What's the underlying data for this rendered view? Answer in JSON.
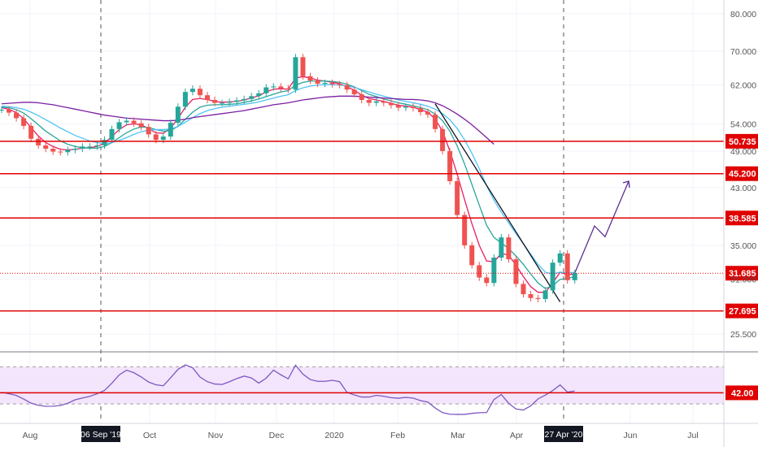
{
  "chart_data": {
    "type": "candlestick",
    "title": "",
    "price_axis": {
      "scale": "log",
      "range": [
        24.0,
        84.0
      ],
      "ticks": [
        "80.000",
        "70.000",
        "62.000",
        "54.000",
        "49.000",
        "43.000",
        "35.000",
        "31.000",
        "25.500"
      ]
    },
    "time_axis": {
      "ticks": [
        "Aug",
        "Oct",
        "Nov",
        "Dec",
        "2020",
        "Feb",
        "Mar",
        "Apr",
        "Jun",
        "Jul"
      ],
      "highlighted": [
        "06 Sep '19",
        "27 Apr '20"
      ]
    },
    "price_closes": [
      56.8,
      56.2,
      55.1,
      53.6,
      51.2,
      50.0,
      49.4,
      48.9,
      48.8,
      49.2,
      49.4,
      49.8,
      49.8,
      50.0,
      51.0,
      53.0,
      54.3,
      54.6,
      54.1,
      53.4,
      52.0,
      51.0,
      51.6,
      54.2,
      57.4,
      60.5,
      61.2,
      59.8,
      58.8,
      58.2,
      58.2,
      58.4,
      58.7,
      59.0,
      59.6,
      60.2,
      61.5,
      61.7,
      61.3,
      61.0,
      68.5,
      64.0,
      63.0,
      62.3,
      62.5,
      62.2,
      62.0,
      61.0,
      60.0,
      58.8,
      58.2,
      58.5,
      58.2,
      57.7,
      57.2,
      57.4,
      57.1,
      56.3,
      55.8,
      53.0,
      49.0,
      44.0,
      39.0,
      35.0,
      32.6,
      31.2,
      30.6,
      33.5,
      36.0,
      33.3,
      30.5,
      29.4,
      29.0,
      28.9,
      29.8,
      32.9,
      34.0,
      30.9,
      31.7
    ],
    "horizontal_levels": [
      {
        "label": "50.735",
        "value": 50.735
      },
      {
        "label": "45.200",
        "value": 45.2
      },
      {
        "label": "38.585",
        "value": 38.585
      },
      {
        "label": "31.685",
        "value": 31.685,
        "style": "dotted"
      },
      {
        "label": "27.695",
        "value": 27.695
      }
    ],
    "projection_path": [
      31.7,
      37.5,
      36.1,
      44.0
    ],
    "moving_averages": [
      {
        "color": "#e91e63",
        "values": [
          57.2,
          56.9,
          56.2,
          55.0,
          53.3,
          51.7,
          50.5,
          49.8,
          49.3,
          49.2,
          49.3,
          49.5,
          49.6,
          49.8,
          50.4,
          51.6,
          52.9,
          53.8,
          54.0,
          53.8,
          53.1,
          52.3,
          52.2,
          53.2,
          55.0,
          57.3,
          58.9,
          59.1,
          58.9,
          58.5,
          58.3,
          58.4,
          58.5,
          58.8,
          59.2,
          59.7,
          60.5,
          61.1,
          61.2,
          61.1,
          63.6,
          63.9,
          63.6,
          63.1,
          62.9,
          62.6,
          62.3,
          61.6,
          60.9,
          59.8,
          59.1,
          58.8,
          58.5,
          58.1,
          57.7,
          57.5,
          57.3,
          56.8,
          56.3,
          54.9,
          52.6,
          49.0,
          45.1,
          41.2,
          37.8,
          35.0,
          33.1,
          33.0,
          34.0,
          33.8,
          32.6,
          31.3,
          30.2,
          29.6,
          29.6,
          30.6,
          31.8,
          31.5,
          31.6
        ]
      },
      {
        "color": "#26a69a",
        "values": [
          57.3,
          57.2,
          56.8,
          56.1,
          55.0,
          53.8,
          52.6,
          51.7,
          50.8,
          50.2,
          49.8,
          49.6,
          49.5,
          49.5,
          49.8,
          50.5,
          51.4,
          52.3,
          53.0,
          53.4,
          53.3,
          52.9,
          52.6,
          52.7,
          53.5,
          54.9,
          56.3,
          57.3,
          57.7,
          57.8,
          57.8,
          57.9,
          58.0,
          58.3,
          58.6,
          59.0,
          59.5,
          60.0,
          60.5,
          60.8,
          62.0,
          62.6,
          62.9,
          62.9,
          62.9,
          62.8,
          62.6,
          62.2,
          61.6,
          60.8,
          60.0,
          59.5,
          59.0,
          58.6,
          58.2,
          57.9,
          57.6,
          57.2,
          56.8,
          55.9,
          54.6,
          52.6,
          49.9,
          46.8,
          43.5,
          40.4,
          37.6,
          36.0,
          35.3,
          34.6,
          33.7,
          32.7,
          31.6,
          30.6,
          30.0,
          30.3,
          31.0,
          31.1,
          31.3
        ]
      },
      {
        "color": "#4fc3f7",
        "values": [
          57.5,
          57.4,
          57.2,
          56.9,
          56.3,
          55.6,
          54.8,
          54.0,
          53.2,
          52.5,
          51.8,
          51.3,
          50.8,
          50.5,
          50.3,
          50.5,
          50.9,
          51.4,
          52.0,
          52.5,
          52.8,
          52.9,
          52.9,
          53.0,
          53.5,
          54.3,
          55.2,
          56.0,
          56.6,
          57.0,
          57.3,
          57.5,
          57.7,
          57.9,
          58.1,
          58.4,
          58.8,
          59.2,
          59.6,
          59.9,
          60.8,
          61.4,
          61.8,
          62.0,
          62.1,
          62.1,
          62.0,
          61.8,
          61.5,
          61.0,
          60.5,
          60.0,
          59.6,
          59.2,
          58.8,
          58.5,
          58.2,
          57.9,
          57.5,
          56.9,
          56.0,
          54.8,
          53.1,
          51.0,
          48.6,
          46.0,
          43.3,
          41.1,
          39.4,
          37.9,
          36.5,
          35.2,
          33.9,
          32.7,
          31.8,
          31.6,
          31.8,
          31.7,
          31.8
        ]
      },
      {
        "color": "#7b1fa2",
        "values": [
          58.0,
          58.1,
          58.2,
          58.3,
          58.3,
          58.2,
          58.0,
          57.8,
          57.5,
          57.2,
          56.9,
          56.6,
          56.3,
          56.0,
          55.7,
          55.5,
          55.3,
          55.1,
          55.0,
          54.9,
          54.8,
          54.7,
          54.6,
          54.6,
          54.7,
          54.9,
          55.2,
          55.4,
          55.6,
          55.8,
          56.0,
          56.2,
          56.4,
          56.6,
          56.9,
          57.2,
          57.5,
          57.8,
          58.0,
          58.2,
          58.5,
          58.8,
          59.0,
          59.2,
          59.4,
          59.5,
          59.6,
          59.6,
          59.6,
          59.5,
          59.4,
          59.3,
          59.2,
          59.1,
          59.0,
          58.9,
          58.9,
          58.8,
          58.6,
          58.2,
          57.6,
          56.8,
          55.9,
          54.9,
          53.8,
          52.6,
          51.4,
          50.2
        ]
      }
    ],
    "rsi": {
      "level_label": "42.00",
      "level_value": 42,
      "band": [
        30,
        70
      ],
      "range": [
        10,
        80
      ],
      "values": [
        42.6,
        41.1,
        39.2,
        35.3,
        30.9,
        28.6,
        27.5,
        27.6,
        28.4,
        30.8,
        34.5,
        36.5,
        38.2,
        41.0,
        44.6,
        52.4,
        61.3,
        66.4,
        63.7,
        59.1,
        53.6,
        50.7,
        49.6,
        58.2,
        67.3,
        72.1,
        68.9,
        59.0,
        54.0,
        51.5,
        51.0,
        54.0,
        57.4,
        60.0,
        58.0,
        52.5,
        57.8,
        66.5,
        61.4,
        57.1,
        71.8,
        62.1,
        56.3,
        54.4,
        54.4,
        55.5,
        54.0,
        42.5,
        39.8,
        37.5,
        37.5,
        39.3,
        38.3,
        36.8,
        36.2,
        37.1,
        36.4,
        33.6,
        32.1,
        25.7,
        20.7,
        19.0,
        18.8,
        18.8,
        19.9,
        20.6,
        20.8,
        34.8,
        40.2,
        30.8,
        24.6,
        23.5,
        28.0,
        35.5,
        39.6,
        44.5,
        50.5,
        42.8,
        44.0
      ]
    }
  }
}
